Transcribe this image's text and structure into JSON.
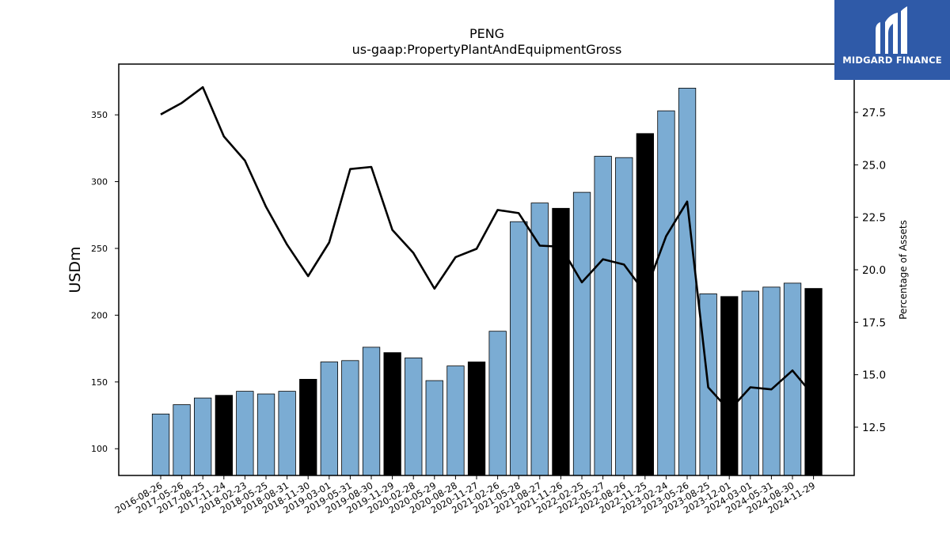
{
  "brand": {
    "name": "MIDGARD FINANCE",
    "bg_color": "#2f5aa8"
  },
  "chart_data": {
    "type": "bar+line",
    "title": "PENG",
    "subtitle": "us-gaap:PropertyPlantAndEquipmentGross",
    "ylabel_left": "USDm",
    "ylabel_right": "Percentage of Assets",
    "ylim_left": [
      80,
      388
    ],
    "ylim_right": [
      10.2,
      29.8
    ],
    "yticks_left": [
      100,
      150,
      200,
      250,
      300,
      350
    ],
    "yticks_right": [
      "12.5",
      "15.0",
      "17.5",
      "20.0",
      "22.5",
      "25.0",
      "27.5"
    ],
    "categories": [
      "2016-08-26",
      "2017-05-26",
      "2017-08-25",
      "2017-11-24",
      "2018-02-23",
      "2018-05-25",
      "2018-08-31",
      "2018-11-30",
      "2019-03-01",
      "2019-05-31",
      "2019-08-30",
      "2019-11-29",
      "2020-02-28",
      "2020-05-29",
      "2020-08-28",
      "2020-11-27",
      "2021-02-26",
      "2021-05-28",
      "2021-08-27",
      "2021-11-26",
      "2022-02-25",
      "2022-05-27",
      "2022-08-26",
      "2022-11-25",
      "2023-02-24",
      "2023-05-26",
      "2023-08-25",
      "2023-12-01",
      "2024-03-01",
      "2024-05-31",
      "2024-08-30",
      "2024-11-29"
    ],
    "series": [
      {
        "kind": "bar",
        "values": [
          126,
          133,
          138,
          140,
          143,
          141,
          143,
          152,
          165,
          166,
          176,
          172,
          168,
          151,
          162,
          165,
          188,
          270,
          284,
          280,
          292,
          319,
          318,
          336,
          353,
          370,
          216,
          214,
          218,
          221,
          224,
          220
        ],
        "highlight": [
          false,
          false,
          false,
          true,
          false,
          false,
          false,
          true,
          false,
          false,
          false,
          true,
          false,
          false,
          false,
          true,
          false,
          false,
          false,
          true,
          false,
          false,
          false,
          true,
          false,
          false,
          false,
          true,
          false,
          false,
          false,
          true
        ],
        "color": "#7bacd3",
        "highlight_color": "#000000"
      },
      {
        "kind": "line",
        "axis": "right",
        "values": [
          27.4,
          27.95,
          28.7,
          26.35,
          25.2,
          23.0,
          21.2,
          19.7,
          21.3,
          24.8,
          24.9,
          21.9,
          20.8,
          19.1,
          20.6,
          21.0,
          22.85,
          22.7,
          21.15,
          21.1,
          19.4,
          20.5,
          20.25,
          18.9,
          21.6,
          23.25,
          14.4,
          13.3,
          14.4,
          14.3,
          15.2,
          14.0
        ],
        "color": "#000000"
      }
    ]
  }
}
